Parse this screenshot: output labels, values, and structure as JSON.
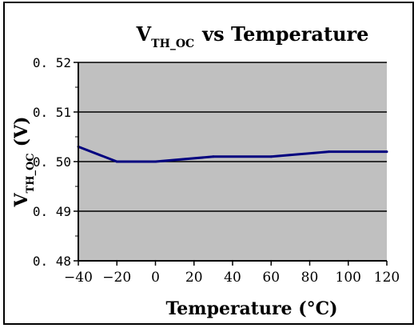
{
  "chart_data": {
    "type": "line",
    "title": "V",
    "title_subscript": "TH_OC",
    "title_suffix": "vs Temperature",
    "xlabel": "Temperature (°C)",
    "ylabel_main": "V",
    "ylabel_subscript": "TH_OC",
    "ylabel_unit": "(V)",
    "xlim": [
      -40,
      120
    ],
    "ylim": [
      0.48,
      0.52
    ],
    "x_ticks": [
      -40,
      -20,
      0,
      20,
      40,
      60,
      80,
      100,
      120
    ],
    "y_ticks": [
      0.48,
      0.49,
      0.5,
      0.51,
      0.52
    ],
    "y_tick_labels": [
      "0. 48",
      "0. 49",
      "0. 50",
      "0. 51",
      "0. 52"
    ],
    "x_tick_labels": [
      "−40",
      "−20",
      "0",
      "20",
      "40",
      "60",
      "80",
      "100",
      "120"
    ],
    "grid": "horizontal",
    "plot_background": "#c0c0c0",
    "series": [
      {
        "color": "#00007f",
        "x": [
          -40,
          -20,
          0,
          30,
          60,
          90,
          120
        ],
        "y": [
          0.503,
          0.5,
          0.5,
          0.501,
          0.501,
          0.502,
          0.502
        ]
      }
    ]
  }
}
